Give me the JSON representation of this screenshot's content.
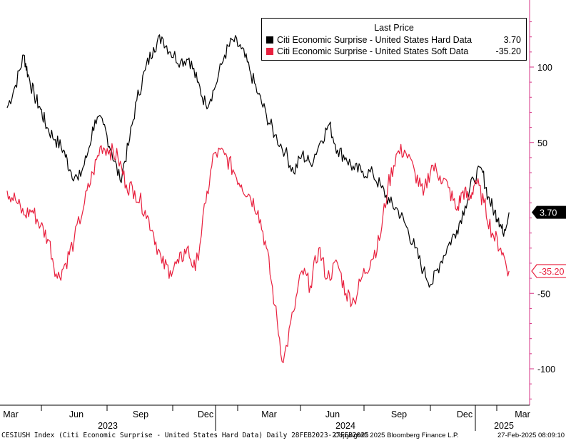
{
  "chart_data": {
    "type": "line",
    "ylim": [
      -125,
      135
    ],
    "yticks": [
      100,
      50,
      -50,
      -100
    ],
    "ytick_labels": [
      "100",
      "50",
      "-50",
      "-100"
    ],
    "legend": {
      "title": "Last Price",
      "placement": "top-right"
    },
    "x_months": [
      "Mar",
      "Jun",
      "Sep",
      "Dec",
      "Mar",
      "Jun",
      "Sep",
      "Dec",
      "Mar"
    ],
    "x_years": [
      "2023",
      "2024",
      "2025"
    ],
    "series": [
      {
        "name": "Citi Economic Surprise - United States Hard Data",
        "last_value_label": "3.70",
        "color": "#000000",
        "x": [
          0,
          0.4,
          0.8,
          1.0,
          1.3,
          1.6,
          1.9,
          2.3,
          2.7,
          3.0,
          3.4,
          3.8,
          4.2,
          4.6,
          5.0,
          5.4,
          5.8,
          6.2,
          6.6,
          7.0,
          7.4,
          7.8,
          8.3,
          8.7,
          9.1,
          9.5,
          9.9,
          10.4,
          10.8,
          11.2,
          11.6,
          12.0,
          12.4,
          12.8,
          13.3,
          13.7,
          14.1,
          14.5,
          15.0,
          15.4,
          15.8,
          16.2,
          16.6,
          17.0,
          17.5,
          17.9,
          18.3,
          18.7,
          19.1,
          19.5,
          19.9,
          20.3,
          20.7,
          21.1,
          21.5,
          21.9,
          22.3,
          22.7,
          23.0,
          23.3,
          23.5,
          23.7,
          24.0
        ],
        "y": [
          73,
          88,
          108,
          95,
          81,
          72,
          60,
          52,
          45,
          32,
          25,
          40,
          65,
          62,
          44,
          25,
          48,
          78,
          98,
          113,
          120,
          110,
          104,
          106,
          90,
          75,
          85,
          108,
          118,
          112,
          98,
          82,
          68,
          55,
          44,
          30,
          42,
          36,
          51,
          62,
          45,
          40,
          32,
          31,
          29,
          20,
          10,
          5,
          -6,
          -20,
          -35,
          -44,
          -30,
          -18,
          -8,
          8,
          26,
          32,
          14,
          4,
          0,
          -10,
          3.7
        ]
      },
      {
        "name": "Citi Economic Surprise - United States Soft Data",
        "last_value_label": "-35.20",
        "color": "#e8203e",
        "x": [
          0,
          0.4,
          0.8,
          1.2,
          1.6,
          2.0,
          2.4,
          2.8,
          3.2,
          3.7,
          4.1,
          4.5,
          4.9,
          5.3,
          5.7,
          6.1,
          6.6,
          7.0,
          7.4,
          7.8,
          8.2,
          8.6,
          9.0,
          9.5,
          9.9,
          10.4,
          10.8,
          11.2,
          11.6,
          12.0,
          12.4,
          12.8,
          13.2,
          13.7,
          14.1,
          14.5,
          14.9,
          15.3,
          15.8,
          16.2,
          16.6,
          17.0,
          17.4,
          17.8,
          18.2,
          18.6,
          19.0,
          19.5,
          19.9,
          20.3,
          20.7,
          21.1,
          21.5,
          21.8,
          22.1,
          22.4,
          22.8,
          23.2,
          23.6,
          24.0
        ],
        "y": [
          18,
          12,
          2,
          5,
          -5,
          -15,
          -40,
          -30,
          -15,
          10,
          30,
          48,
          45,
          40,
          22,
          18,
          5,
          -10,
          -30,
          -35,
          -30,
          -20,
          -35,
          10,
          43,
          42,
          32,
          22,
          15,
          5,
          -20,
          -58,
          -96,
          -62,
          -35,
          -45,
          -20,
          -40,
          -30,
          -50,
          -55,
          -38,
          -28,
          -15,
          20,
          42,
          45,
          30,
          15,
          35,
          28,
          20,
          5,
          18,
          12,
          25,
          10,
          -10,
          -20,
          -35.2
        ]
      }
    ]
  },
  "footer": {
    "left": "CESIUSH Index (Citi Economic Surprise - United States Hard Data)  Daily 28FEB2023-27FEB2025",
    "center": "Copyright© 2025 Bloomberg Finance L.P.",
    "right": "27-Feb-2025 08:09:10"
  }
}
